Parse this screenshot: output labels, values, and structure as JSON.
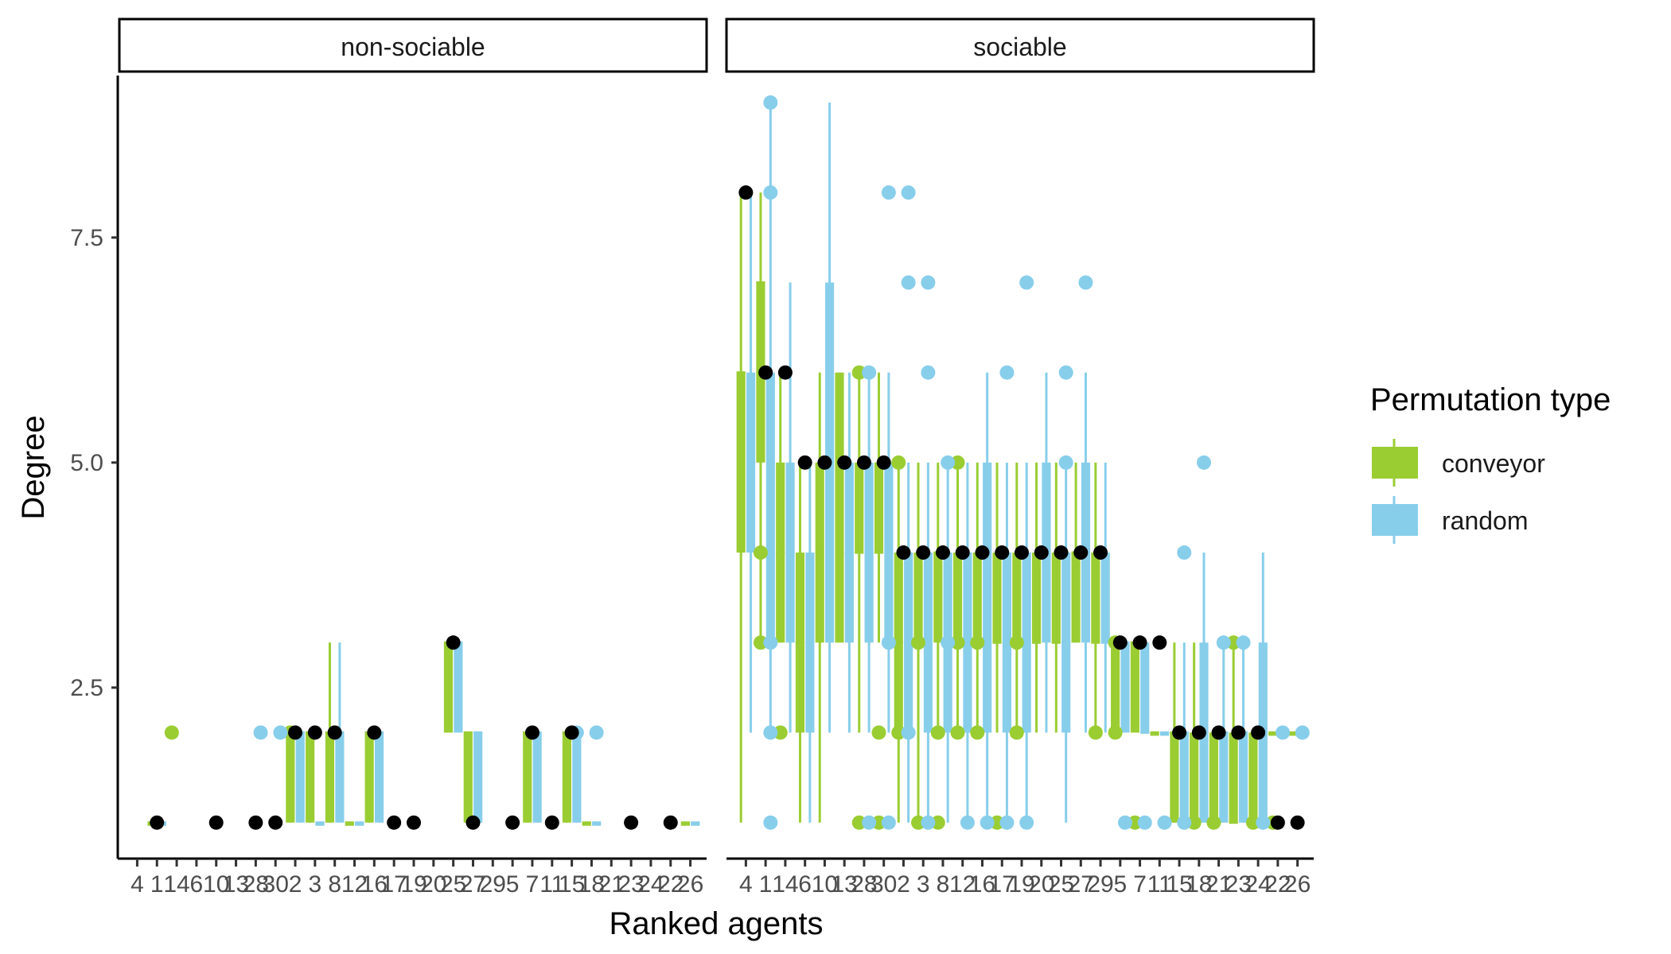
{
  "chart_data": {
    "type": "box",
    "facets": [
      "non-sociable",
      "sociable"
    ],
    "xlabel": "Ranked agents",
    "ylabel": "Degree",
    "ylim": [
      0.6,
      9.3
    ],
    "yticks": [
      2.5,
      5.0,
      7.5
    ],
    "ytick_labels": [
      "2.5",
      "5.0",
      "7.5"
    ],
    "grid": false,
    "legend": {
      "title": "Permutation type",
      "placement": "right",
      "entries": [
        {
          "name": "conveyor",
          "color": "#9acd32"
        },
        {
          "name": "random",
          "color": "#87ceeb"
        }
      ]
    },
    "categories": [
      "4",
      "1",
      "14",
      "6",
      "10",
      "13",
      "28",
      "30",
      "2",
      "3",
      "8",
      "12",
      "16",
      "17",
      "19",
      "20",
      "25",
      "27",
      "29",
      "5",
      "7",
      "11",
      "15",
      "18",
      "21",
      "23",
      "24",
      "22",
      "26"
    ],
    "series": [
      {
        "name": "conveyor",
        "color": "#9acd32"
      },
      {
        "name": "random",
        "color": "#87ceeb"
      }
    ],
    "observed_color": "#000000",
    "panels": [
      {
        "facet": "non-sociable",
        "observed": [
          null,
          1,
          null,
          null,
          1,
          null,
          1,
          1,
          2,
          2,
          2,
          null,
          2,
          1,
          1,
          null,
          3,
          1,
          null,
          1,
          2,
          1,
          2,
          null,
          null,
          1,
          null,
          1,
          null
        ],
        "boxes": {
          "conveyor": [
            null,
            [
              1,
              1,
              1,
              1,
              1
            ],
            null,
            null,
            null,
            null,
            null,
            null,
            [
              1,
              1,
              2,
              2,
              2
            ],
            [
              1,
              1,
              2,
              2,
              2
            ],
            [
              1,
              1,
              2,
              2,
              3
            ],
            [
              1,
              1,
              1,
              1,
              1
            ],
            [
              1,
              1,
              2,
              2,
              2
            ],
            null,
            null,
            null,
            [
              2,
              2,
              3,
              3,
              3
            ],
            [
              1,
              1,
              2,
              2,
              2
            ],
            null,
            null,
            [
              1,
              1,
              2,
              2,
              2
            ],
            null,
            [
              1,
              1,
              2,
              2,
              2
            ],
            [
              1,
              1,
              1,
              1,
              1
            ],
            null,
            null,
            null,
            null,
            [
              1,
              1,
              1,
              1,
              1
            ]
          ],
          "random": [
            null,
            [
              1,
              1,
              1,
              1,
              1
            ],
            null,
            null,
            null,
            null,
            null,
            null,
            [
              1,
              1,
              2,
              2,
              2
            ],
            [
              1,
              1,
              1,
              1,
              1
            ],
            [
              1,
              1,
              2,
              2,
              3
            ],
            [
              1,
              1,
              1,
              1,
              1
            ],
            [
              1,
              1,
              2,
              2,
              2
            ],
            null,
            null,
            null,
            [
              2,
              2,
              3,
              3,
              3
            ],
            [
              1,
              1,
              2,
              2,
              2
            ],
            null,
            null,
            [
              1,
              1,
              2,
              2,
              2
            ],
            null,
            [
              1,
              1,
              2,
              2,
              2
            ],
            [
              1,
              1,
              1,
              1,
              1
            ],
            null,
            null,
            null,
            null,
            [
              1,
              1,
              1,
              1,
              1
            ]
          ]
        },
        "outliers": {
          "conveyor": [
            [
              8,
              2
            ],
            [
              2,
              2
            ]
          ],
          "random": [
            [
              6,
              2
            ],
            [
              7,
              2
            ],
            [
              22,
              2
            ],
            [
              23,
              2
            ]
          ]
        }
      },
      {
        "facet": "sociable",
        "observed": [
          8,
          6,
          6,
          5,
          5,
          5,
          5,
          5,
          4,
          4,
          4,
          4,
          4,
          4,
          4,
          4,
          4,
          4,
          4,
          3,
          3,
          3,
          2,
          2,
          2,
          2,
          2,
          1,
          1
        ],
        "boxes": {
          "conveyor": [
            [
              1,
              4,
              6,
              6,
              8
            ],
            [
              3,
              5,
              7,
              7,
              8
            ],
            [
              3,
              3,
              4,
              5,
              6
            ],
            [
              1,
              2,
              3,
              4,
              5
            ],
            [
              1,
              3,
              4,
              5,
              6
            ],
            [
              3,
              3,
              4,
              6,
              6
            ],
            [
              2,
              4,
              4,
              5,
              6
            ],
            [
              3,
              4,
              4,
              5,
              6
            ],
            [
              1,
              2,
              3,
              4,
              5
            ],
            [
              1,
              3,
              3,
              4,
              5
            ],
            [
              2,
              3,
              4,
              4,
              5
            ],
            [
              2,
              3,
              3,
              4,
              5
            ],
            [
              2,
              3,
              3,
              4,
              5
            ],
            [
              2,
              3,
              3,
              4,
              5
            ],
            [
              2,
              3,
              3,
              4,
              5
            ],
            [
              2,
              3,
              3,
              4,
              5
            ],
            [
              2,
              3,
              3,
              4,
              5
            ],
            [
              3,
              3,
              4,
              4,
              5
            ],
            [
              2,
              3,
              3,
              4,
              5
            ],
            [
              2,
              2,
              3,
              3,
              3
            ],
            [
              2,
              2,
              3,
              3,
              3
            ],
            [
              2,
              2,
              2,
              2,
              2
            ],
            [
              1,
              1,
              2,
              2,
              3
            ],
            [
              1,
              1,
              1,
              2,
              3
            ],
            [
              1,
              1,
              1,
              2,
              2
            ],
            [
              1,
              1,
              1,
              2,
              3
            ],
            [
              1,
              1,
              1,
              2,
              2
            ],
            [
              2,
              2,
              2,
              2,
              2
            ],
            [
              2,
              2,
              2,
              2,
              2
            ]
          ],
          "random": [
            [
              2,
              4,
              5,
              6,
              8
            ],
            [
              2,
              3,
              4,
              6,
              9
            ],
            [
              2,
              3,
              4,
              5,
              7
            ],
            [
              1,
              2,
              3,
              4,
              5
            ],
            [
              2,
              3,
              5,
              7,
              9
            ],
            [
              2,
              3,
              4,
              5,
              6
            ],
            [
              2,
              3,
              4,
              5,
              6
            ],
            [
              2,
              3,
              4,
              5,
              6
            ],
            [
              1,
              2,
              3,
              4,
              5
            ],
            [
              1,
              2,
              3,
              4,
              5
            ],
            [
              1,
              2,
              3,
              4,
              5
            ],
            [
              1,
              2,
              3,
              4,
              5
            ],
            [
              1,
              2,
              3,
              5,
              6
            ],
            [
              1,
              2,
              3,
              4,
              5
            ],
            [
              1,
              2,
              3,
              4,
              5
            ],
            [
              2,
              3,
              4,
              5,
              6
            ],
            [
              1,
              2,
              3,
              4,
              5
            ],
            [
              2,
              3,
              4,
              5,
              6
            ],
            [
              2,
              3,
              3,
              4,
              5
            ],
            [
              2,
              2,
              3,
              3,
              3
            ],
            [
              2,
              2,
              2,
              3,
              3
            ],
            [
              2,
              2,
              2,
              2,
              2
            ],
            [
              1,
              1,
              2,
              2,
              3
            ],
            [
              1,
              1,
              2,
              3,
              4
            ],
            [
              1,
              1,
              2,
              2,
              3
            ],
            [
              1,
              1,
              2,
              2,
              3
            ],
            [
              1,
              1,
              2,
              3,
              4
            ],
            [
              2,
              2,
              2,
              2,
              2
            ],
            [
              2,
              2,
              2,
              2,
              2
            ]
          ]
        },
        "outliers": {
          "conveyor": [
            [
              1,
              4
            ],
            [
              1,
              3
            ],
            [
              2,
              2
            ],
            [
              6,
              1
            ],
            [
              6,
              6
            ],
            [
              7,
              1
            ],
            [
              7,
              2
            ],
            [
              8,
              2
            ],
            [
              8,
              5
            ],
            [
              9,
              3
            ],
            [
              9,
              1
            ],
            [
              10,
              2
            ],
            [
              10,
              1
            ],
            [
              11,
              5
            ],
            [
              11,
              3
            ],
            [
              11,
              2
            ],
            [
              12,
              3
            ],
            [
              12,
              2
            ],
            [
              13,
              1
            ],
            [
              14,
              2
            ],
            [
              14,
              3
            ],
            [
              18,
              2
            ],
            [
              19,
              2
            ],
            [
              19,
              3
            ],
            [
              20,
              1
            ],
            [
              23,
              1
            ],
            [
              24,
              1
            ],
            [
              25,
              3
            ],
            [
              26,
              1
            ],
            [
              27,
              1
            ]
          ],
          "random": [
            [
              1,
              9
            ],
            [
              1,
              8
            ],
            [
              1,
              3
            ],
            [
              1,
              2
            ],
            [
              1,
              1
            ],
            [
              6,
              6
            ],
            [
              6,
              1
            ],
            [
              7,
              8
            ],
            [
              7,
              3
            ],
            [
              7,
              1
            ],
            [
              8,
              8
            ],
            [
              8,
              7
            ],
            [
              8,
              2
            ],
            [
              9,
              7
            ],
            [
              9,
              6
            ],
            [
              9,
              1
            ],
            [
              10,
              5
            ],
            [
              10,
              3
            ],
            [
              11,
              1
            ],
            [
              12,
              1
            ],
            [
              13,
              6
            ],
            [
              13,
              1
            ],
            [
              14,
              7
            ],
            [
              14,
              1
            ],
            [
              16,
              6
            ],
            [
              16,
              5
            ],
            [
              17,
              7
            ],
            [
              19,
              1
            ],
            [
              20,
              1
            ],
            [
              21,
              1
            ],
            [
              22,
              1
            ],
            [
              22,
              4
            ],
            [
              23,
              5
            ],
            [
              24,
              3
            ],
            [
              25,
              3
            ],
            [
              26,
              1
            ],
            [
              27,
              2
            ],
            [
              28,
              2
            ]
          ]
        }
      }
    ]
  }
}
